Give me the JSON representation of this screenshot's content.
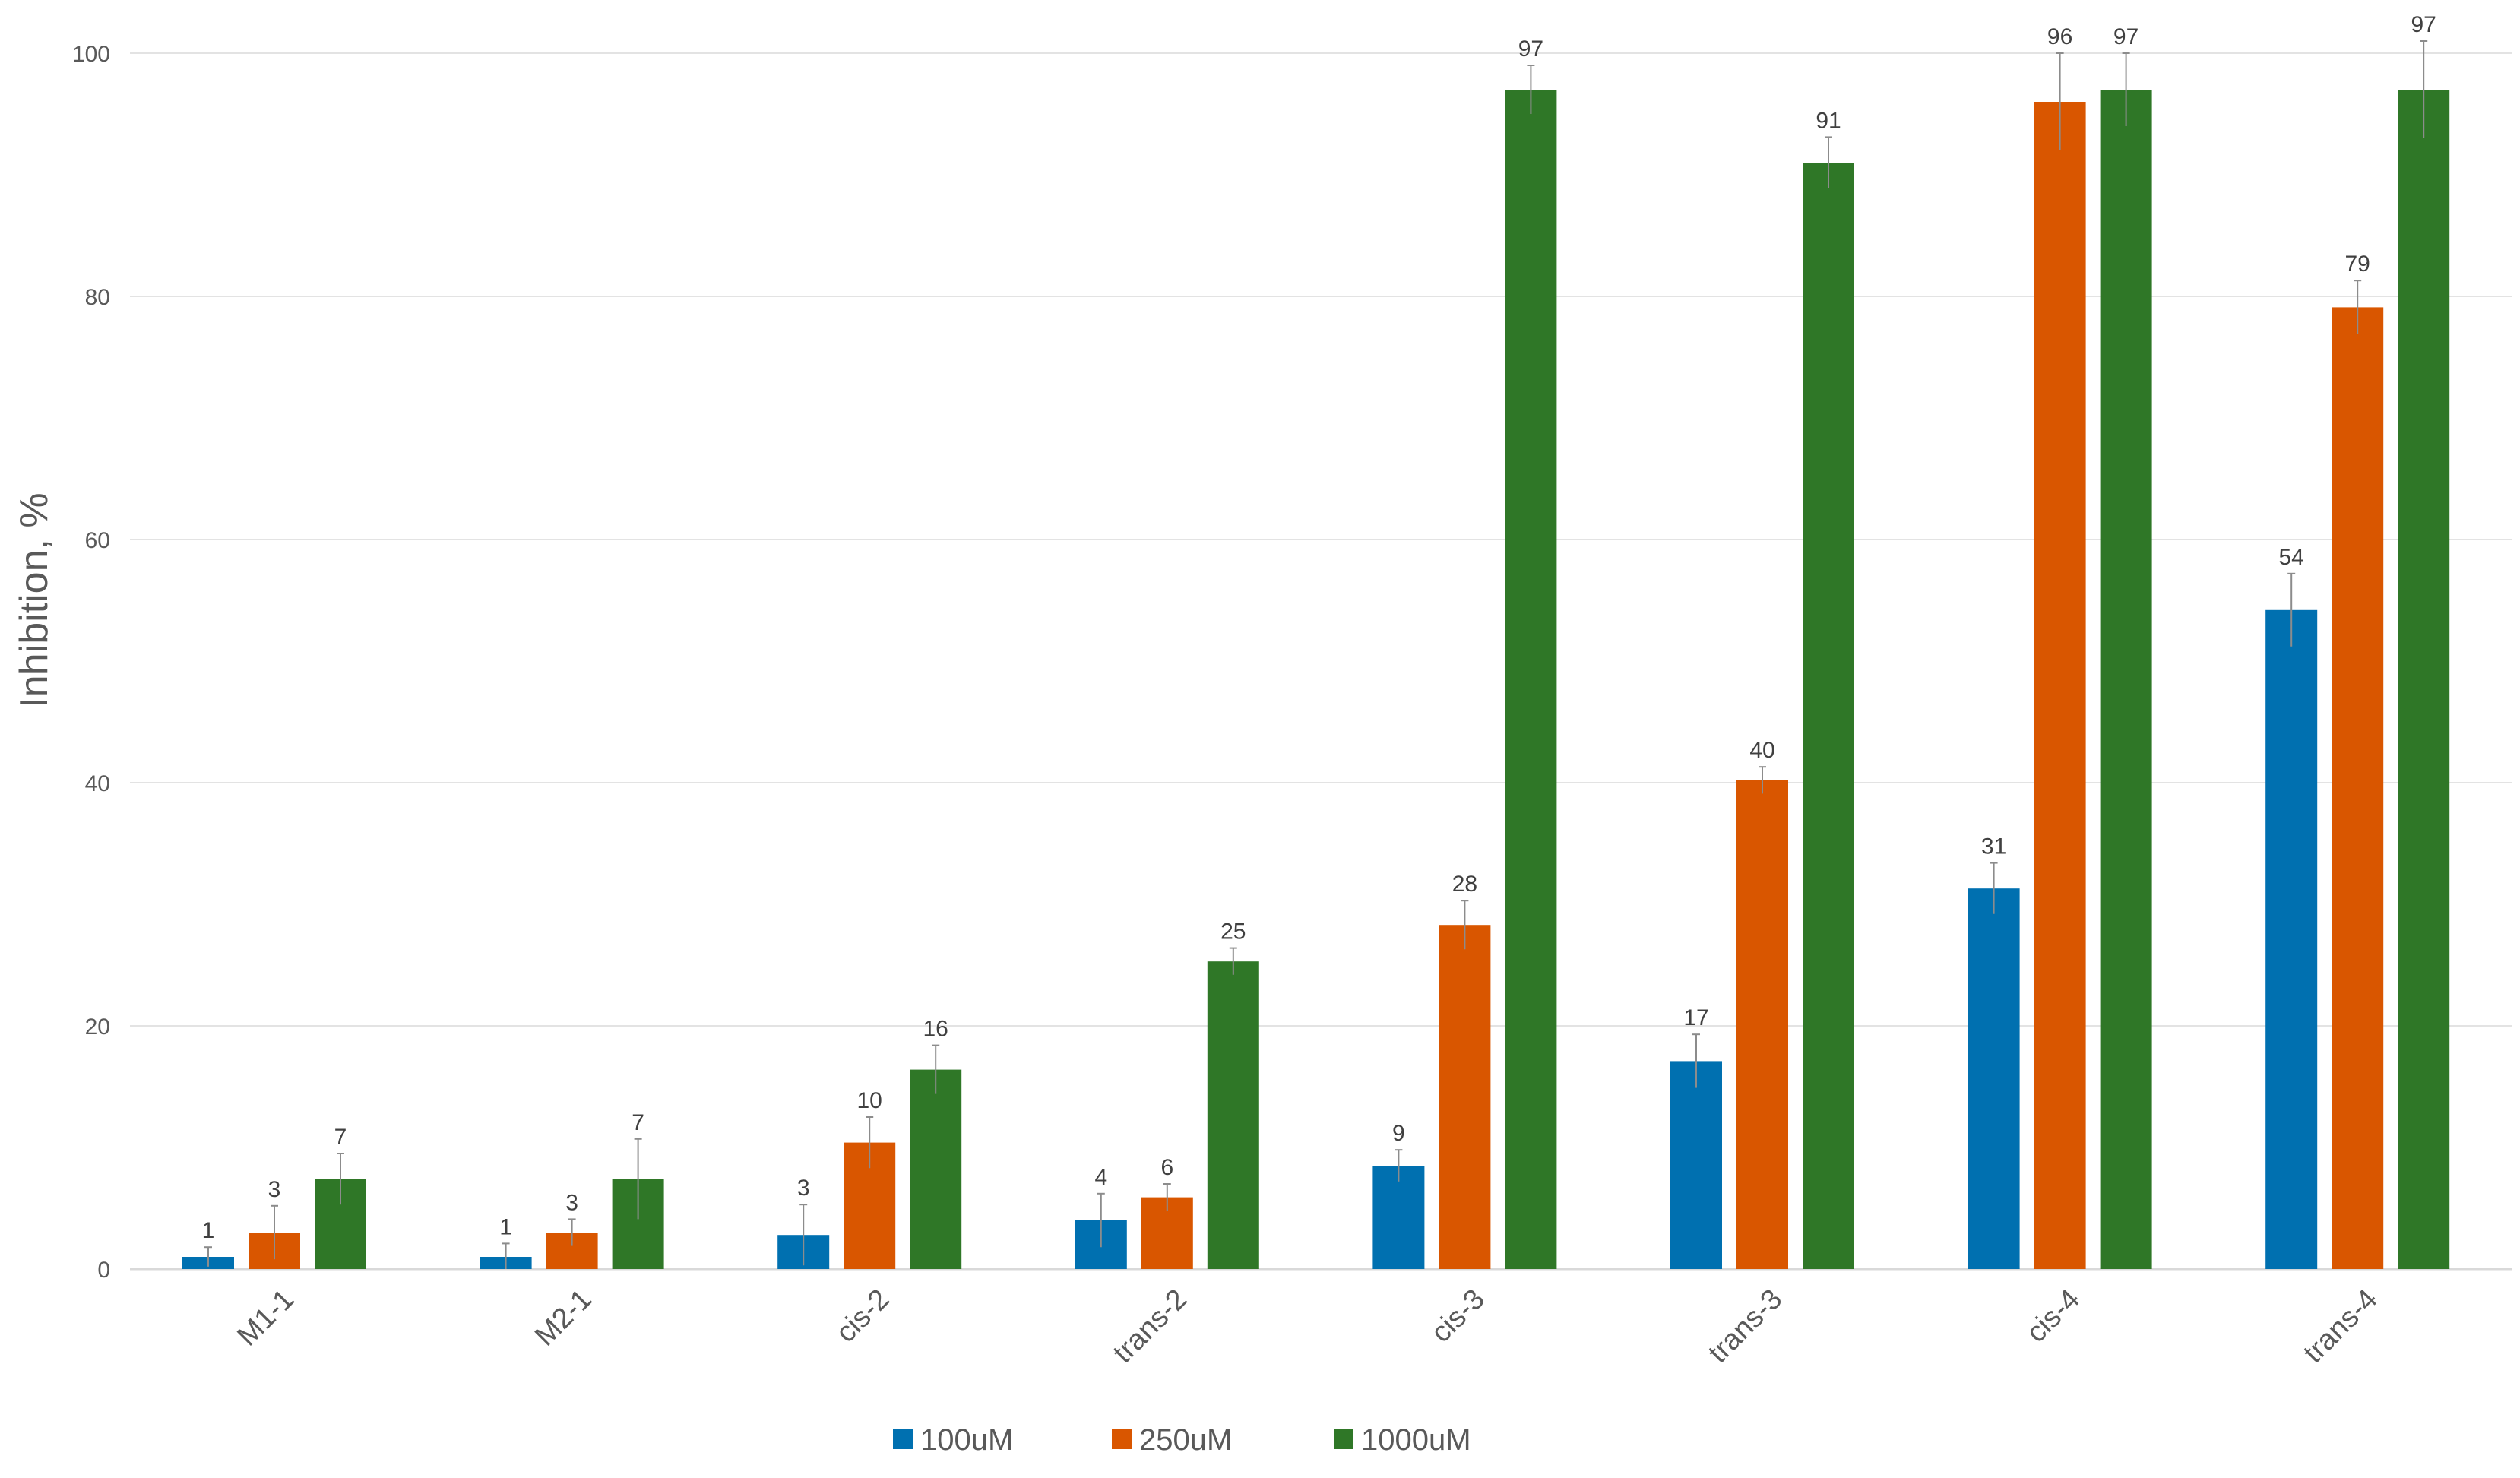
{
  "chart_data": {
    "type": "bar",
    "title": "",
    "xlabel": "",
    "ylabel": "Inhibition, %",
    "ylim": [
      0,
      100
    ],
    "yticks": [
      0,
      20,
      40,
      60,
      80,
      100
    ],
    "grid": true,
    "legend_position": "bottom",
    "categories": [
      "M1-1",
      "M2-1",
      "cis-2",
      "trans-2",
      "cis-3",
      "trans-3",
      "cis-4",
      "trans-4"
    ],
    "series": [
      {
        "name": "100uM",
        "color": "#0070b0",
        "values": [
          1,
          1,
          2.8,
          4,
          8.5,
          17.1,
          31.3,
          54.2
        ],
        "labels": [
          "1",
          "1",
          "3",
          "4",
          "9",
          "17",
          "31",
          "54"
        ],
        "errors": [
          0.8,
          1.1,
          2.5,
          2.2,
          1.3,
          2.2,
          2.1,
          3.0
        ]
      },
      {
        "name": "250uM",
        "color": "#d95600",
        "values": [
          3,
          3,
          10.4,
          5.9,
          28.3,
          40.2,
          96,
          79.1
        ],
        "labels": [
          "3",
          "3",
          "10",
          "6",
          "28",
          "40",
          "96",
          "79"
        ],
        "errors": [
          2.2,
          1.1,
          2.1,
          1.1,
          2.0,
          1.1,
          4.0,
          2.2
        ]
      },
      {
        "name": "1000uM",
        "color": "#2f7727",
        "values": [
          7.4,
          7.4,
          16.4,
          25.3,
          97,
          91,
          97,
          97
        ],
        "labels": [
          "7",
          "7",
          "16",
          "25",
          "97",
          "91",
          "97",
          "97"
        ],
        "errors": [
          2.1,
          3.3,
          2.0,
          1.1,
          2.0,
          2.1,
          3.0,
          4.0
        ]
      }
    ]
  }
}
